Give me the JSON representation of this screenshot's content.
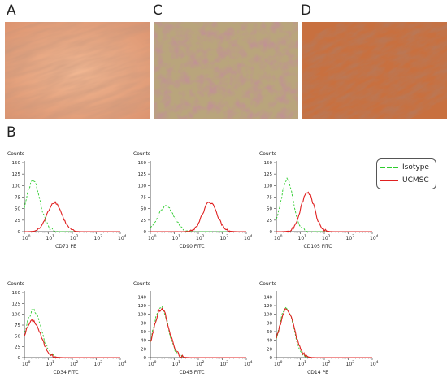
{
  "panels": {
    "a": "A",
    "b": "B",
    "c": "C",
    "d": "D"
  },
  "legend": {
    "isotype": "Isotype",
    "ucmsc": "UCMSC"
  },
  "colors": {
    "isotype": "#2ecc2e",
    "ucmsc": "#e02020",
    "axis": "#333333",
    "micro_a": "#e8a784",
    "micro_c": "#b7a27a",
    "micro_d": "#c86a3a"
  },
  "chart_data": [
    {
      "type": "area",
      "xlabel": "CD73 PE",
      "ylabel": "Counts",
      "xscale": "log",
      "xlim": [
        1,
        10000
      ],
      "ylim": [
        0,
        150
      ],
      "yticks": [
        0,
        25,
        50,
        75,
        100,
        125,
        150
      ],
      "xticks": [
        "10^0",
        "10^1",
        "10^2",
        "10^3",
        "10^4"
      ],
      "series": [
        {
          "name": "Isotype",
          "peak_x": 2.3,
          "peak_y": 110,
          "width": 0.3
        },
        {
          "name": "UCMSC",
          "peak_x": 18,
          "peak_y": 64,
          "width": 0.3
        }
      ]
    },
    {
      "type": "area",
      "xlabel": "CD90 FITC",
      "ylabel": "Counts",
      "xscale": "log",
      "xlim": [
        1,
        10000
      ],
      "ylim": [
        0,
        150
      ],
      "yticks": [
        0,
        25,
        50,
        75,
        100,
        125,
        150
      ],
      "xticks": [
        "10^0",
        "10^1",
        "10^2",
        "10^3",
        "10^4"
      ],
      "series": [
        {
          "name": "Isotype",
          "peak_x": 4.5,
          "peak_y": 55,
          "width": 0.34
        },
        {
          "name": "UCMSC",
          "peak_x": 300,
          "peak_y": 64,
          "width": 0.3
        }
      ]
    },
    {
      "type": "area",
      "xlabel": "CD105 FITC",
      "ylabel": "Counts",
      "xscale": "log",
      "xlim": [
        1,
        10000
      ],
      "ylim": [
        0,
        150
      ],
      "yticks": [
        0,
        25,
        50,
        75,
        100,
        125,
        150
      ],
      "xticks": [
        "10^0",
        "10^1",
        "10^2",
        "10^3",
        "10^4"
      ],
      "series": [
        {
          "name": "Isotype",
          "peak_x": 2.8,
          "peak_y": 112,
          "width": 0.26
        },
        {
          "name": "UCMSC",
          "peak_x": 20,
          "peak_y": 86,
          "width": 0.28
        }
      ]
    },
    {
      "type": "area",
      "xlabel": "CD34 FITC",
      "ylabel": "Counts",
      "xscale": "log",
      "xlim": [
        1,
        10000
      ],
      "ylim": [
        0,
        150
      ],
      "yticks": [
        0,
        25,
        50,
        75,
        100,
        125,
        150
      ],
      "xticks": [
        "10^0",
        "10^1",
        "10^2",
        "10^3",
        "10^4"
      ],
      "series": [
        {
          "name": "Isotype",
          "peak_x": 2.4,
          "peak_y": 110,
          "width": 0.32
        },
        {
          "name": "UCMSC",
          "peak_x": 2.2,
          "peak_y": 85,
          "width": 0.34
        }
      ]
    },
    {
      "type": "area",
      "xlabel": "CD45 FITC",
      "ylabel": "Counts",
      "xscale": "log",
      "xlim": [
        1,
        10000
      ],
      "ylim": [
        0,
        150
      ],
      "yticks": [
        0,
        20,
        40,
        60,
        80,
        100,
        120,
        140
      ],
      "xticks": [
        "10^0",
        "10^1",
        "10^2",
        "10^3",
        "10^4"
      ],
      "series": [
        {
          "name": "Isotype",
          "peak_x": 2.8,
          "peak_y": 118,
          "width": 0.3
        },
        {
          "name": "UCMSC",
          "peak_x": 2.9,
          "peak_y": 112,
          "width": 0.31
        }
      ]
    },
    {
      "type": "area",
      "xlabel": "CD14 PE",
      "ylabel": "Counts",
      "xscale": "log",
      "xlim": [
        1,
        10000
      ],
      "ylim": [
        0,
        150
      ],
      "yticks": [
        0,
        20,
        40,
        60,
        80,
        100,
        120,
        140
      ],
      "xticks": [
        "10^0",
        "10^1",
        "10^2",
        "10^3",
        "10^4"
      ],
      "series": [
        {
          "name": "Isotype",
          "peak_x": 2.6,
          "peak_y": 115,
          "width": 0.3
        },
        {
          "name": "UCMSC",
          "peak_x": 2.7,
          "peak_y": 112,
          "width": 0.31
        }
      ]
    }
  ]
}
